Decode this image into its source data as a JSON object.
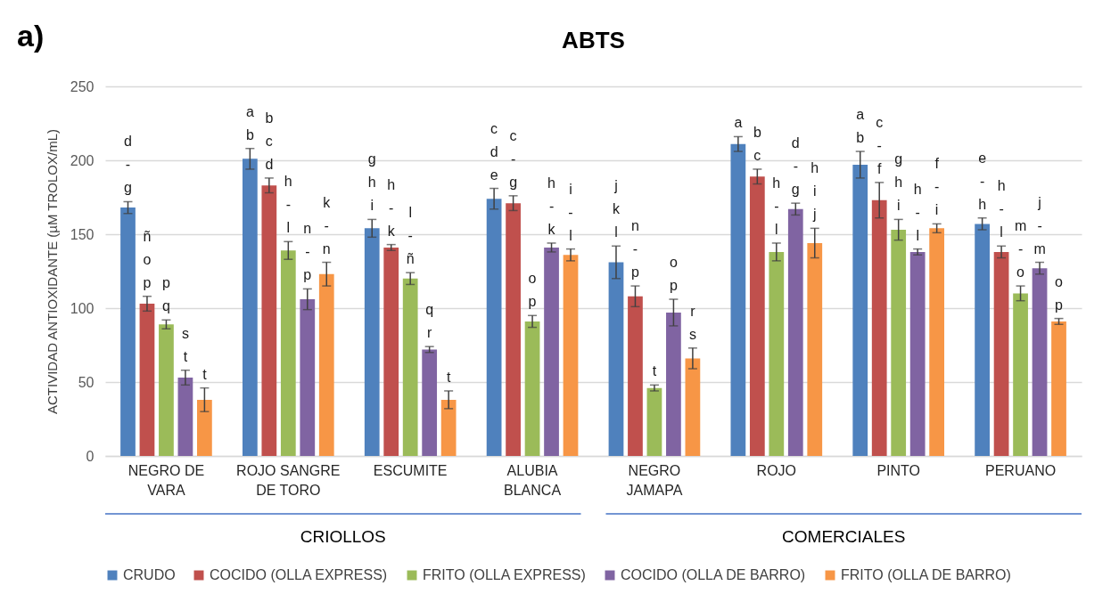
{
  "chart_data": {
    "type": "bar",
    "title": "ABTS",
    "ylabel": "ACTIVIDAD ANTIOXIDANTE  (µM TROLOX/mL)",
    "annotations": [
      "a)",
      "CRIOLLOS",
      "COMERCIALES"
    ],
    "categories": [
      "NEGRO DE VARA",
      "ROJO SANGRE DE TORO",
      "ESCUMITE",
      "ALUBIA BLANCA",
      "NEGRO JAMAPA",
      "ROJO",
      "PINTO",
      "PERUANO"
    ],
    "series": [
      {
        "name": "CRUDO",
        "color": "#4f81bd",
        "values": [
          168,
          201,
          154,
          174,
          131,
          211,
          197,
          157
        ],
        "errors": [
          4,
          7,
          6,
          7,
          11,
          5,
          9,
          4
        ],
        "value_labels": [
          "d-g",
          "ab",
          "ghi",
          "cde",
          "jkl",
          "a",
          "ab",
          "e-h"
        ]
      },
      {
        "name": "COCIDO (OLLA EXPRESS)",
        "color": "#c0504d",
        "values": [
          103,
          183,
          141,
          171,
          108,
          189,
          173,
          138
        ],
        "errors": [
          5,
          5,
          2,
          5,
          7,
          5,
          12,
          4
        ],
        "value_labels": [
          "ñop",
          "bcd",
          "h-k",
          "c-g",
          "n-p",
          "bc",
          "c-f",
          "h-l"
        ]
      },
      {
        "name": "FRITO (OLLA EXPRESS)",
        "color": "#9bbb59",
        "values": [
          89,
          139,
          120,
          91,
          46,
          138,
          153,
          110
        ],
        "errors": [
          3,
          6,
          4,
          4,
          2,
          6,
          7,
          5
        ],
        "value_labels": [
          "pq",
          "h-l",
          "l-ñ",
          "op",
          "t",
          "h-l",
          "ghi",
          "m-o"
        ]
      },
      {
        "name": "COCIDO (OLLA DE BARRO)",
        "color": "#8064a2",
        "values": [
          53,
          106,
          72,
          141,
          97,
          167,
          138,
          127
        ],
        "errors": [
          5,
          7,
          2,
          3,
          9,
          4,
          2,
          4
        ],
        "value_labels": [
          "st",
          "n-p",
          "qr",
          "h-k",
          "op",
          "d-g",
          "h-l",
          "j-m"
        ]
      },
      {
        "name": "FRITO (OLLA DE BARRO)",
        "color": "#f79646",
        "values": [
          38,
          123,
          38,
          136,
          66,
          144,
          154,
          91
        ],
        "errors": [
          8,
          8,
          6,
          4,
          7,
          10,
          3,
          2
        ],
        "value_labels": [
          "t",
          "k-n",
          "t",
          "i-l",
          "rs",
          "hij",
          "f-i",
          "op"
        ]
      }
    ],
    "ylim": [
      0,
      250
    ],
    "yticks": [
      0,
      50,
      100,
      150,
      200,
      250
    ],
    "grid": "y",
    "legend": "bottom"
  }
}
